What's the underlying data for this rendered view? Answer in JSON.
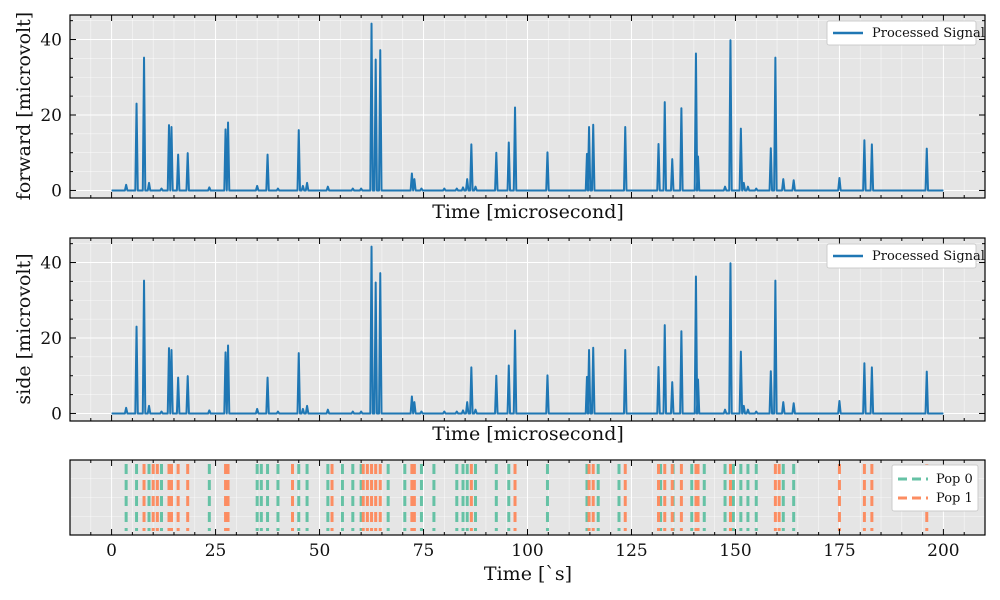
{
  "colors": {
    "panel_bg": "#e5e5e5",
    "grid": "#ffffff",
    "signal": "#1f77b4",
    "pop0": "#66c2a5",
    "pop1": "#fc8d62"
  },
  "chart_data": [
    {
      "type": "line",
      "panel": "top",
      "ylabel": "forward [microvolt]",
      "xlabel": "Time [microsecond]",
      "xlim": [
        -10,
        210
      ],
      "ylim": [
        -2,
        46.5
      ],
      "xticks": [
        0,
        25,
        50,
        75,
        100,
        125,
        150,
        175,
        200
      ],
      "xtick_labels_visible": false,
      "yticks": [
        0,
        20,
        40
      ],
      "ytick_labels": [
        "0",
        "20",
        "40"
      ],
      "grid": true,
      "legend": {
        "placement": "top-right",
        "entries": [
          "Processed Signal"
        ]
      },
      "series": [
        {
          "name": "Processed Signal",
          "baseline": 0,
          "x_range": [
            0,
            200
          ],
          "peaks": [
            [
              3.5,
              1.5
            ],
            [
              6,
              23
            ],
            [
              7.8,
              35.2
            ],
            [
              9,
              2
            ],
            [
              12,
              0.5
            ],
            [
              13.8,
              17.3
            ],
            [
              14.4,
              16.8
            ],
            [
              16,
              9.5
            ],
            [
              18.3,
              9.9
            ],
            [
              23.5,
              0.8
            ],
            [
              27.4,
              16.2
            ],
            [
              28,
              18
            ],
            [
              35,
              1.2
            ],
            [
              37.5,
              9.5
            ],
            [
              40,
              0.5
            ],
            [
              45,
              16
            ],
            [
              46,
              1.2
            ],
            [
              47,
              2
            ],
            [
              52,
              1
            ],
            [
              58,
              0.5
            ],
            [
              60,
              0.5
            ],
            [
              62.5,
              44.2
            ],
            [
              63.5,
              34.7
            ],
            [
              64.6,
              37.2
            ],
            [
              72.2,
              4.5
            ],
            [
              72.8,
              3
            ],
            [
              74.5,
              0.5
            ],
            [
              80,
              0.5
            ],
            [
              83,
              0.5
            ],
            [
              84.5,
              0.8
            ],
            [
              85.5,
              3
            ],
            [
              86.5,
              12.2
            ],
            [
              87.5,
              1
            ],
            [
              92.5,
              10
            ],
            [
              95.5,
              12.7
            ],
            [
              97,
              22
            ],
            [
              104.8,
              10.1
            ],
            [
              114.3,
              9.7
            ],
            [
              114.8,
              16.8
            ],
            [
              115.8,
              17.4
            ],
            [
              123.5,
              16.8
            ],
            [
              131.5,
              12.3
            ],
            [
              133,
              23.4
            ],
            [
              134.8,
              8.3
            ],
            [
              137,
              21.8
            ],
            [
              140.5,
              36.3
            ],
            [
              141,
              9
            ],
            [
              147.5,
              1
            ],
            [
              148.8,
              39.8
            ],
            [
              151.3,
              16.4
            ],
            [
              152,
              2
            ],
            [
              153,
              1
            ],
            [
              155,
              0.5
            ],
            [
              158.5,
              11.2
            ],
            [
              159.6,
              35.2
            ],
            [
              161.5,
              3
            ],
            [
              164,
              2.7
            ],
            [
              175,
              3.3
            ],
            [
              181,
              13.3
            ],
            [
              182.8,
              12.2
            ],
            [
              196,
              11.1
            ]
          ]
        }
      ]
    },
    {
      "type": "line",
      "panel": "middle",
      "ylabel": "side [microvolt]",
      "xlabel": "Time [microsecond]",
      "xlim": [
        -10,
        210
      ],
      "ylim": [
        -2,
        46.5
      ],
      "xticks": [
        0,
        25,
        50,
        75,
        100,
        125,
        150,
        175,
        200
      ],
      "xtick_labels_visible": false,
      "yticks": [
        0,
        20,
        40
      ],
      "ytick_labels": [
        "0",
        "20",
        "40"
      ],
      "grid": true,
      "legend": {
        "placement": "top-right",
        "entries": [
          "Processed Signal"
        ]
      },
      "series": [
        {
          "name": "Processed Signal",
          "baseline": 0,
          "x_range": [
            0,
            200
          ],
          "peaks": [
            [
              3.5,
              1.5
            ],
            [
              6,
              23
            ],
            [
              7.8,
              35.2
            ],
            [
              9,
              2
            ],
            [
              12,
              0.5
            ],
            [
              13.8,
              17.3
            ],
            [
              14.4,
              16.8
            ],
            [
              16,
              9.5
            ],
            [
              18.3,
              9.9
            ],
            [
              23.5,
              0.8
            ],
            [
              27.4,
              16.2
            ],
            [
              28,
              18
            ],
            [
              35,
              1.2
            ],
            [
              37.5,
              9.5
            ],
            [
              40,
              0.5
            ],
            [
              45,
              16
            ],
            [
              46,
              1.2
            ],
            [
              47,
              2
            ],
            [
              52,
              1
            ],
            [
              58,
              0.5
            ],
            [
              60,
              0.5
            ],
            [
              62.5,
              44.2
            ],
            [
              63.5,
              34.7
            ],
            [
              64.6,
              37.2
            ],
            [
              72.2,
              4.5
            ],
            [
              72.8,
              3
            ],
            [
              74.5,
              0.5
            ],
            [
              80,
              0.5
            ],
            [
              83,
              0.5
            ],
            [
              84.5,
              0.8
            ],
            [
              85.5,
              3
            ],
            [
              86.5,
              12.2
            ],
            [
              87.5,
              1
            ],
            [
              92.5,
              10
            ],
            [
              95.5,
              12.7
            ],
            [
              97,
              22
            ],
            [
              104.8,
              10.1
            ],
            [
              114.3,
              9.7
            ],
            [
              114.8,
              16.8
            ],
            [
              115.8,
              17.4
            ],
            [
              123.5,
              16.8
            ],
            [
              131.5,
              12.3
            ],
            [
              133,
              23.4
            ],
            [
              134.8,
              8.3
            ],
            [
              137,
              21.8
            ],
            [
              140.5,
              36.3
            ],
            [
              141,
              9
            ],
            [
              147.5,
              1
            ],
            [
              148.8,
              39.8
            ],
            [
              151.3,
              16.4
            ],
            [
              152,
              2
            ],
            [
              153,
              1
            ],
            [
              155,
              0.5
            ],
            [
              158.5,
              11.2
            ],
            [
              159.6,
              35.2
            ],
            [
              161.5,
              3
            ],
            [
              164,
              2.7
            ],
            [
              175,
              3.3
            ],
            [
              181,
              13.3
            ],
            [
              182.8,
              12.2
            ],
            [
              196,
              11.1
            ]
          ]
        }
      ]
    },
    {
      "type": "scatter",
      "panel": "bottom",
      "xlabel": "Time [`s]",
      "ylabel": "",
      "xlim": [
        -10,
        210
      ],
      "xticks": [
        0,
        25,
        50,
        75,
        100,
        125,
        150,
        175,
        200
      ],
      "xtick_labels": [
        "0",
        "25",
        "50",
        "75",
        "100",
        "125",
        "150",
        "175",
        "200"
      ],
      "yticks_visible": false,
      "grid": true,
      "legend": {
        "placement": "top-right",
        "entries": [
          "Pop 0",
          "Pop 1"
        ]
      },
      "series": [
        {
          "name": "Pop 0",
          "style": "dashed vertical lines",
          "x": [
            3.5,
            6,
            9,
            12,
            23.5,
            35,
            36,
            37.5,
            40,
            45,
            47,
            52,
            55.5,
            58,
            60,
            66.5,
            70.5,
            74.5,
            77.5,
            83,
            84.5,
            85.5,
            87.5,
            92.5,
            95.5,
            104.8,
            114.3,
            117,
            122,
            132,
            135,
            139.5,
            142.5,
            147.5,
            149.5,
            151.3,
            153,
            155,
            161.5,
            164
          ]
        },
        {
          "name": "Pop 1",
          "style": "dashed vertical lines",
          "x": [
            7.8,
            10,
            11,
            13.8,
            14.4,
            16,
            18.3,
            27.4,
            28,
            43.5,
            53,
            60.5,
            61.5,
            62.5,
            63.5,
            64.6,
            72.2,
            72.8,
            86.5,
            97,
            114.8,
            115.8,
            123.5,
            131.5,
            133,
            134.8,
            137,
            140.5,
            141,
            148.8,
            159.6,
            160.5,
            175,
            181,
            182.8,
            196
          ]
        }
      ]
    }
  ]
}
